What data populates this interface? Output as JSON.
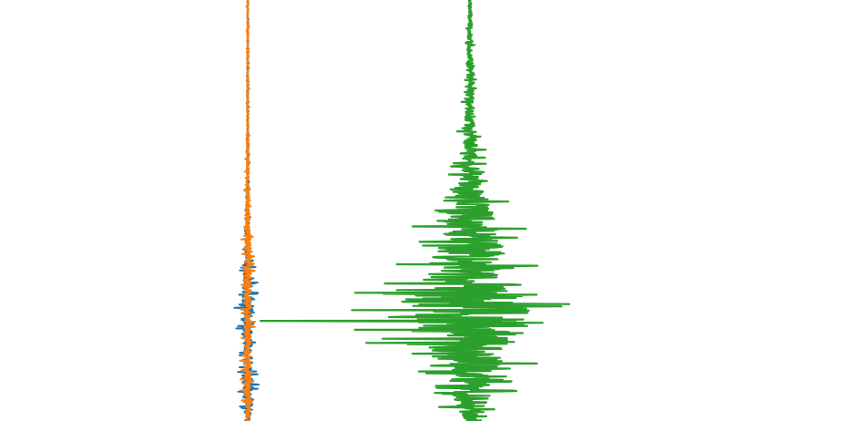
{
  "chart_data": {
    "type": "line",
    "orientation": "vertical-time-axis",
    "axes_visible": false,
    "grid": false,
    "legend": "none",
    "ylim": [
      0,
      1
    ],
    "series": [
      {
        "color": "#1f77b4",
        "center": 0.0,
        "envelope": [
          [
            0.0,
            1.0
          ],
          [
            0.1,
            1.0
          ],
          [
            0.2,
            1.2
          ],
          [
            0.3,
            1.4
          ],
          [
            0.4,
            2.0
          ],
          [
            0.5,
            3.0
          ],
          [
            0.55,
            4.0
          ],
          [
            0.6,
            6.0
          ],
          [
            0.65,
            10.0
          ],
          [
            0.7,
            13.0
          ],
          [
            0.75,
            16.0
          ],
          [
            0.8,
            12.0
          ],
          [
            0.85,
            10.0
          ],
          [
            0.9,
            14.0
          ],
          [
            0.95,
            11.0
          ],
          [
            1.0,
            6.0
          ]
        ]
      },
      {
        "color": "#ff7f0e",
        "center": 0.0,
        "envelope": [
          [
            0.0,
            1.5
          ],
          [
            0.1,
            1.5
          ],
          [
            0.2,
            2.0
          ],
          [
            0.3,
            2.5
          ],
          [
            0.4,
            3.0
          ],
          [
            0.5,
            5.0
          ],
          [
            0.55,
            7.0
          ],
          [
            0.6,
            8.0
          ],
          [
            0.65,
            10.0
          ],
          [
            0.7,
            10.0
          ],
          [
            0.75,
            9.0
          ],
          [
            0.8,
            8.0
          ],
          [
            0.85,
            9.0
          ],
          [
            0.9,
            8.0
          ],
          [
            0.95,
            7.0
          ],
          [
            1.0,
            4.0
          ]
        ]
      },
      {
        "color": "#2ca02c",
        "center": 244.0,
        "spike": {
          "at": 0.762,
          "value": -230.0
        },
        "envelope": [
          [
            0.0,
            3.0
          ],
          [
            0.05,
            5.0
          ],
          [
            0.1,
            5.0
          ],
          [
            0.15,
            8.0
          ],
          [
            0.2,
            8.0
          ],
          [
            0.25,
            10.0
          ],
          [
            0.3,
            14.0
          ],
          [
            0.35,
            18.0
          ],
          [
            0.4,
            22.0
          ],
          [
            0.45,
            30.0
          ],
          [
            0.5,
            60.0
          ],
          [
            0.55,
            65.0
          ],
          [
            0.6,
            90.0
          ],
          [
            0.65,
            105.0
          ],
          [
            0.7,
            140.0
          ],
          [
            0.75,
            155.0
          ],
          [
            0.8,
            125.0
          ],
          [
            0.85,
            90.0
          ],
          [
            0.9,
            55.0
          ],
          [
            0.95,
            50.0
          ],
          [
            1.0,
            12.0
          ]
        ]
      }
    ]
  }
}
